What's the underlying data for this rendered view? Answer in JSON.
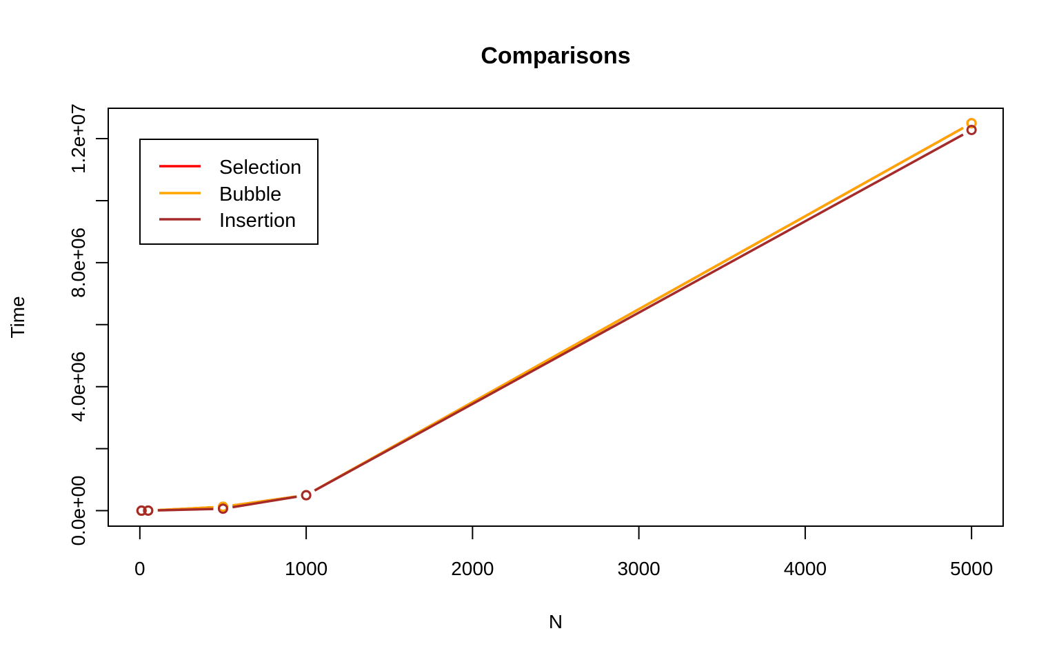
{
  "chart_data": {
    "type": "line",
    "title": "Comparisons",
    "xlabel": "N",
    "ylabel": "Time",
    "x": [
      10,
      50,
      500,
      1000,
      5000
    ],
    "xlim": [
      -190,
      5190
    ],
    "ylim": [
      -500000,
      12980000
    ],
    "xticks": [
      0,
      1000,
      2000,
      3000,
      4000,
      5000
    ],
    "xtick_labels": [
      "0",
      "1000",
      "2000",
      "3000",
      "4000",
      "5000"
    ],
    "yticks": [
      0,
      2000000,
      4000000,
      6000000,
      8000000,
      10000000,
      12000000
    ],
    "ytick_labels": [
      "0.0e+00",
      "",
      "4.0e+06",
      "",
      "8.0e+06",
      "",
      "1.2e+07"
    ],
    "grid": false,
    "legend_position": "top-left",
    "series": [
      {
        "name": "Selection",
        "color": "#ff0000",
        "values": [
          45,
          1225,
          124750,
          499500,
          12497500
        ]
      },
      {
        "name": "Bubble",
        "color": "#ffa500",
        "values": [
          45,
          1225,
          124750,
          499500,
          12497500
        ]
      },
      {
        "name": "Insertion",
        "color": "#a52a2a",
        "values": [
          30,
          640,
          62000,
          498000,
          12280000
        ]
      }
    ]
  }
}
